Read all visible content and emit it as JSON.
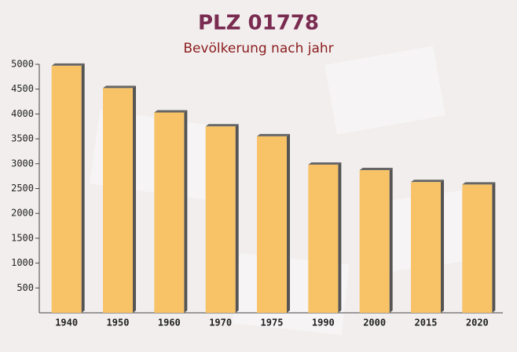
{
  "chart_data": {
    "type": "bar",
    "title": "PLZ 01778",
    "subtitle": "Bevölkerung nach jahr",
    "categories": [
      "1940",
      "1950",
      "1960",
      "1970",
      "1975",
      "1990",
      "2000",
      "2015",
      "2020"
    ],
    "values": [
      4970,
      4520,
      4030,
      3750,
      3550,
      2980,
      2870,
      2630,
      2580
    ],
    "color": "#f8c267",
    "ylim": [
      0,
      5000
    ],
    "yticks": [
      500,
      1000,
      1500,
      2000,
      2500,
      3000,
      3500,
      4000,
      4500,
      5000
    ],
    "grid": false
  }
}
